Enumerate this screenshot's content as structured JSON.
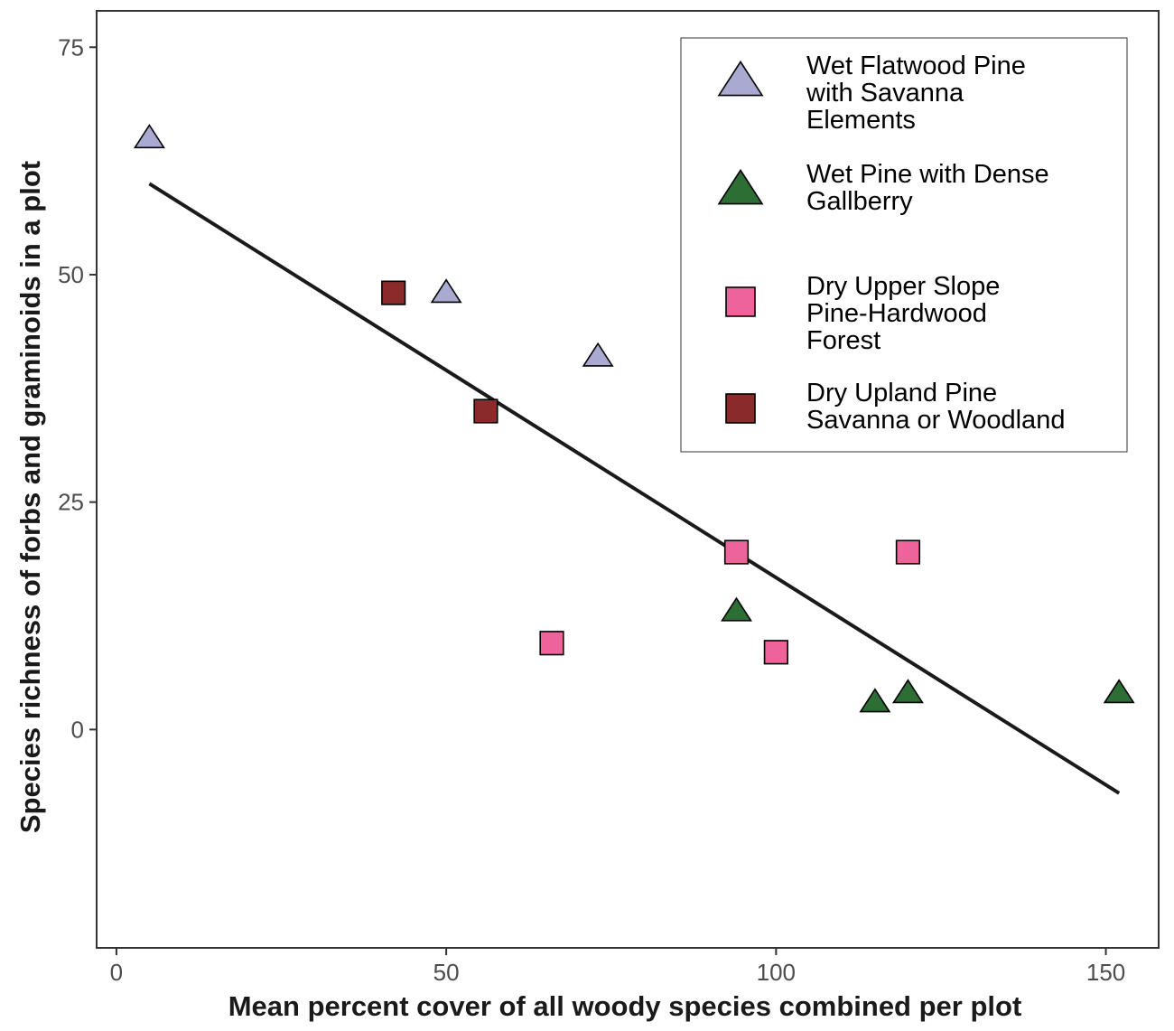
{
  "chart_data": {
    "type": "scatter",
    "title": "",
    "xlabel": "Mean percent cover of all woody species combined per plot",
    "ylabel": "Species richness of forbs and graminoids in a plot",
    "xlim": [
      -3,
      158
    ],
    "ylim": [
      -24,
      79
    ],
    "x_ticks": [
      0,
      50,
      100,
      150
    ],
    "y_ticks": [
      0,
      25,
      50,
      75
    ],
    "grid": false,
    "legend_position": "top-right",
    "series": [
      {
        "name": "Wet Flatwood Pine with Savanna Elements",
        "legend_lines": [
          "Wet Flatwood Pine",
          "with Savanna",
          "Elements"
        ],
        "marker": "triangle",
        "color": "#a9a9d1",
        "points": [
          [
            5,
            65
          ],
          [
            50,
            48
          ],
          [
            73,
            41
          ]
        ]
      },
      {
        "name": "Wet Pine with Dense Gallberry",
        "legend_lines": [
          "Wet Pine with Dense",
          "Gallberry"
        ],
        "marker": "triangle",
        "color": "#2d6e35",
        "points": [
          [
            94,
            13
          ],
          [
            115,
            3
          ],
          [
            120,
            4
          ],
          [
            152,
            4
          ]
        ]
      },
      {
        "name": "Dry Upper Slope Pine-Hardwood Forest",
        "legend_lines": [
          "Dry Upper Slope",
          "Pine-Hardwood",
          "Forest"
        ],
        "marker": "square",
        "color": "#ee6399",
        "points": [
          [
            94,
            19.5
          ],
          [
            120,
            19.5
          ],
          [
            66,
            9.5
          ],
          [
            100,
            8.5
          ]
        ]
      },
      {
        "name": "Dry Upland Pine Savanna or Woodland",
        "legend_lines": [
          "Dry Upland Pine",
          "Savanna or Woodland"
        ],
        "marker": "square",
        "color": "#8b2a2a",
        "points": [
          [
            42,
            48
          ],
          [
            56,
            35
          ]
        ]
      }
    ],
    "trend_line": {
      "x": [
        5,
        152
      ],
      "y": [
        60,
        -7
      ],
      "color": "#1a1a1a"
    }
  }
}
